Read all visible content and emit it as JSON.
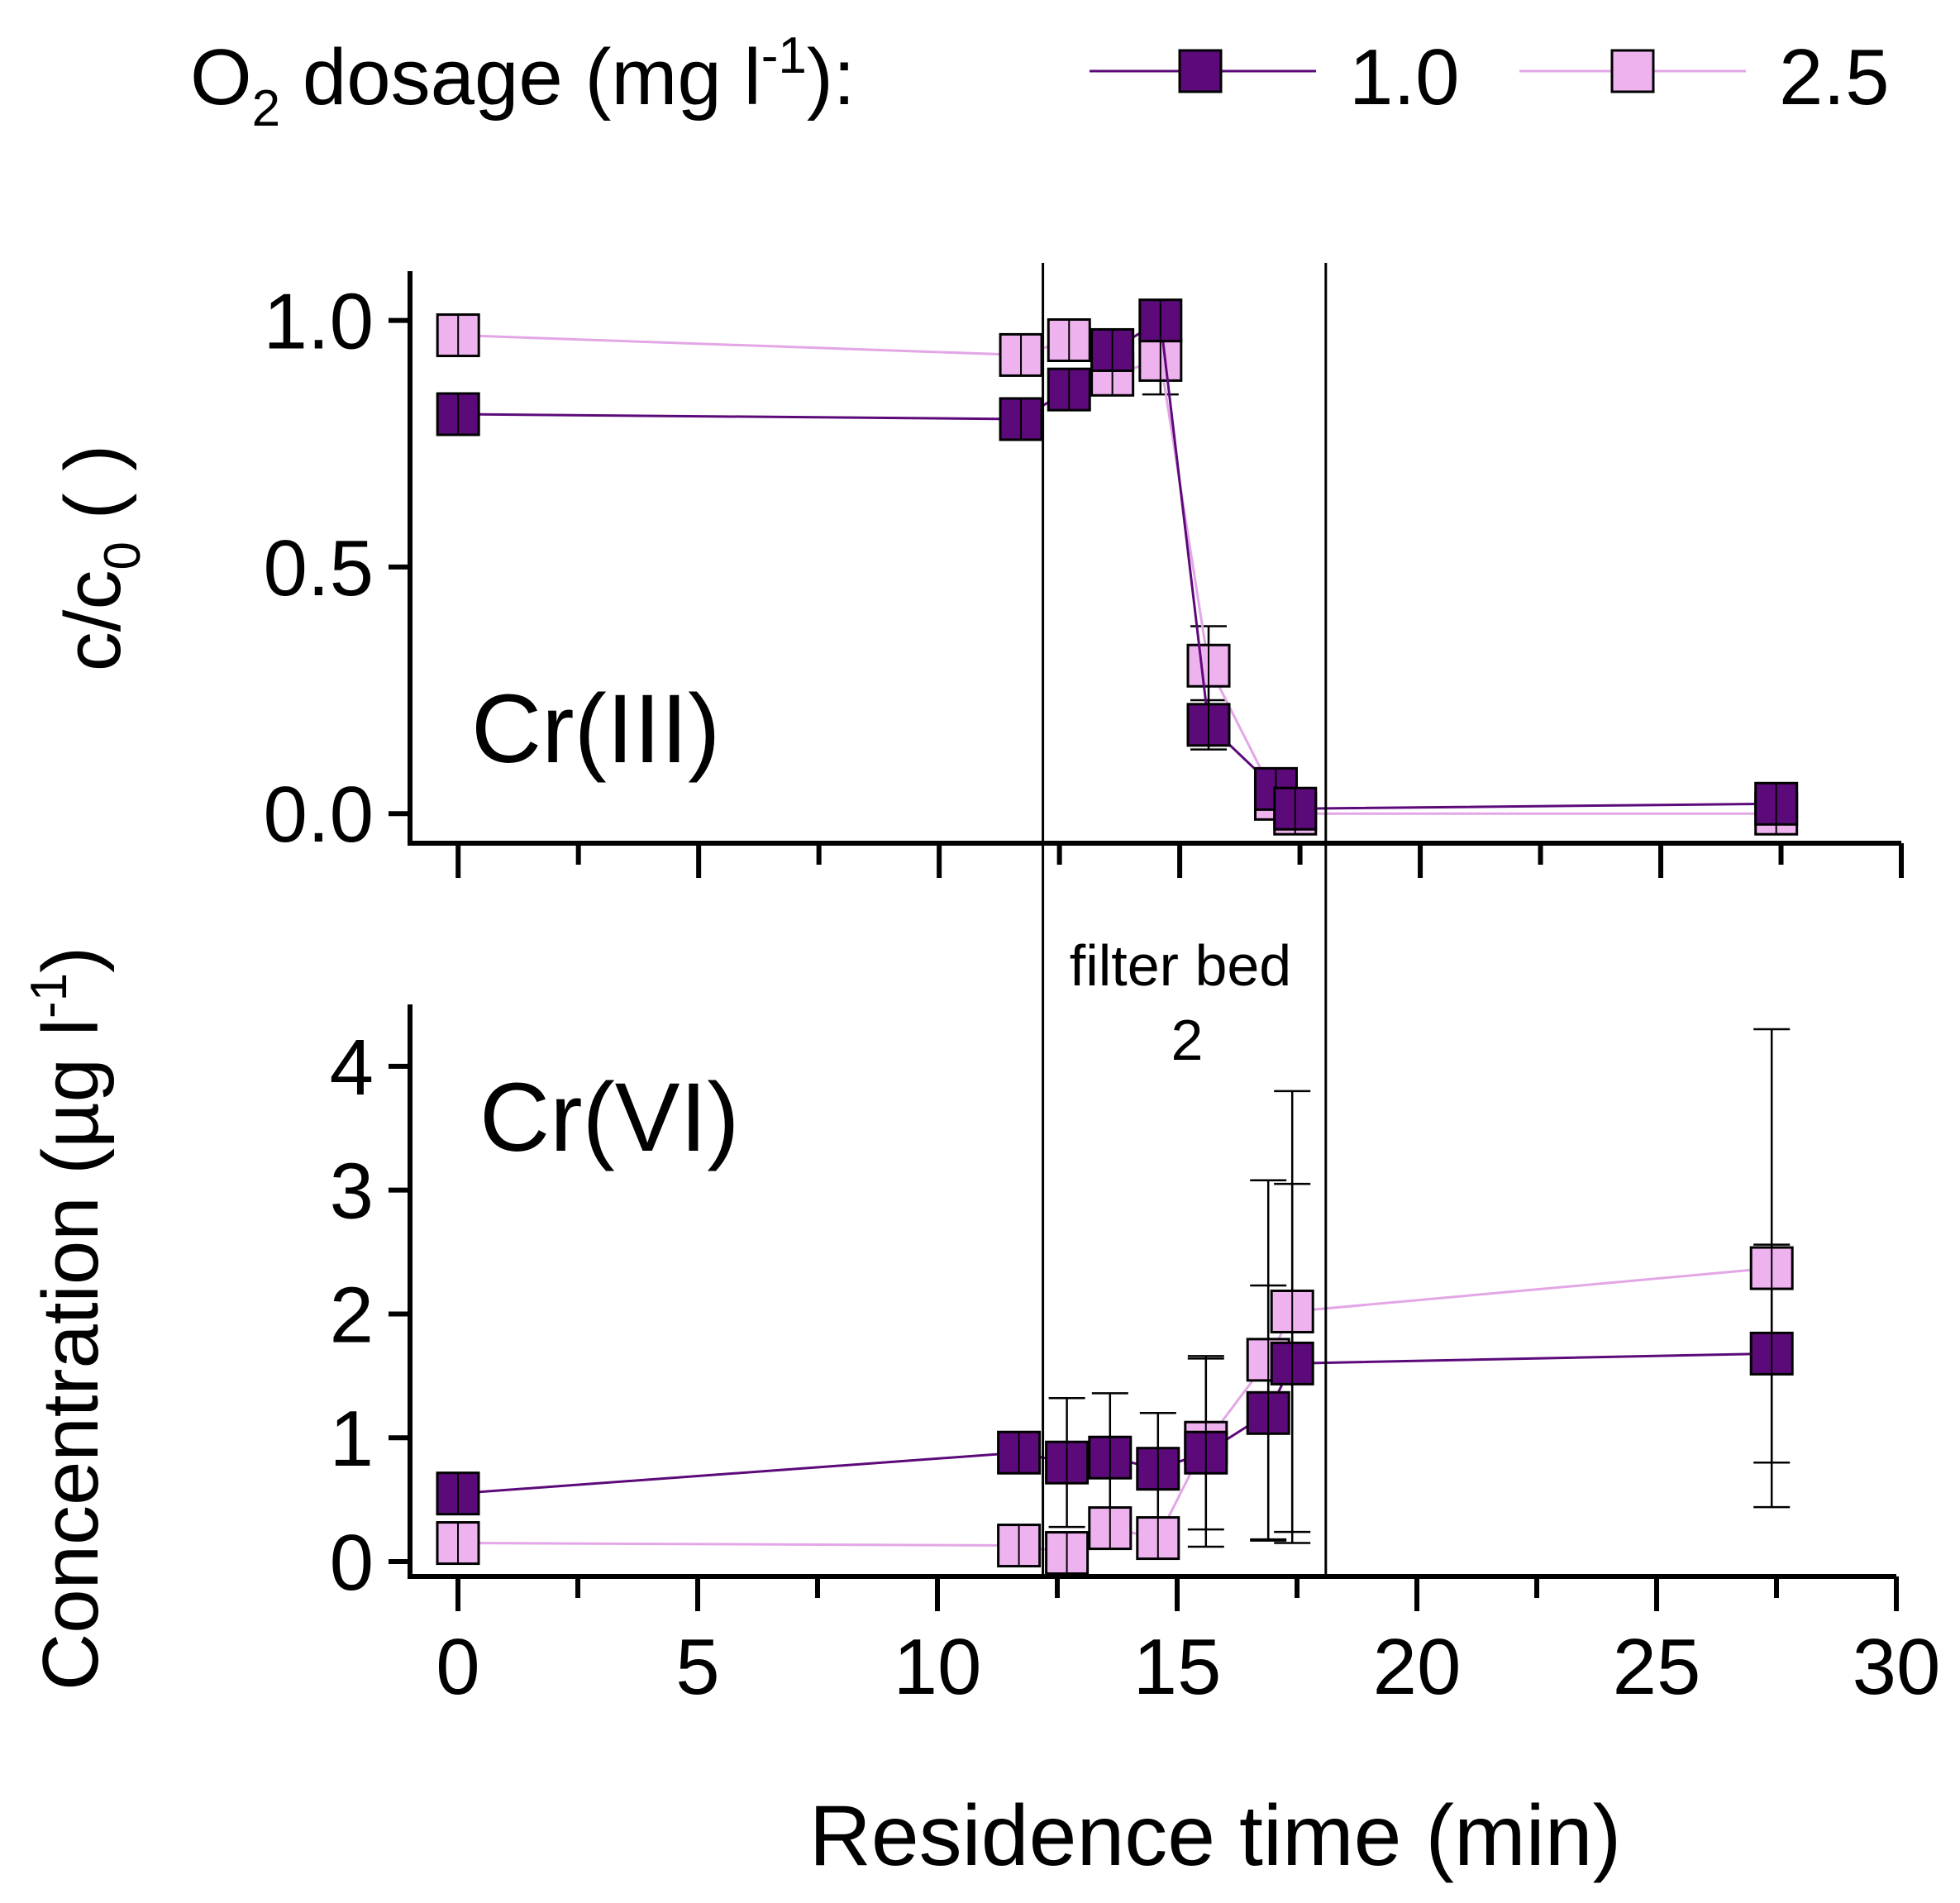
{
  "legend": {
    "title_main": "O",
    "title_sub": "2",
    "title_rest": " dosage (mg l",
    "title_sup": "-1",
    "title_end": "):",
    "entries": [
      "1.0",
      "2.5"
    ]
  },
  "colors": {
    "series_1_0": "#5c0a7a",
    "series_2_5": "#eeb2ee",
    "line_2_5": "#e3a6e6",
    "axis": "#000000"
  },
  "chart_data": [
    {
      "type": "line",
      "title": "Cr(III)",
      "xlabel": "Residence time (min)",
      "ylabel_main": "c/c",
      "ylabel_sub": "0",
      "ylabel_rest": " ( )",
      "xlim": [
        -1,
        30
      ],
      "ylim": [
        -0.06,
        1.1
      ],
      "yticks": [
        0.0,
        0.5,
        1.0
      ],
      "ytick_labels": [
        "0.0",
        "0.5",
        "1.0"
      ],
      "xticks": [
        0,
        5,
        10,
        15,
        20,
        25,
        30
      ],
      "series": [
        {
          "name": "1.0",
          "x": [
            0,
            11.7,
            12.7,
            13.6,
            14.6,
            15.6,
            17.0,
            17.4,
            27.4
          ],
          "y": [
            0.81,
            0.8,
            0.86,
            0.94,
            1.0,
            0.18,
            0.05,
            0.01,
            0.02
          ],
          "err": [
            0.03,
            0.03,
            0.03,
            0.04,
            0.03,
            0.05,
            0.03,
            0.02,
            0.02
          ]
        },
        {
          "name": "2.5",
          "x": [
            0,
            11.7,
            12.7,
            13.6,
            14.6,
            15.6,
            17.0,
            17.4,
            27.4
          ],
          "y": [
            0.97,
            0.93,
            0.96,
            0.89,
            0.92,
            0.3,
            0.03,
            0.0,
            0.0
          ],
          "err": [
            0.03,
            0.03,
            0.03,
            0.04,
            0.07,
            0.08,
            0.03,
            0.02,
            0.02
          ]
        }
      ]
    },
    {
      "type": "line",
      "title": "Cr(VI)",
      "xlabel": "Residence time (min)",
      "ylabel_main": "Concentration (µg l",
      "ylabel_sup": "-1",
      "ylabel_end": ")",
      "xlim": [
        -1,
        30
      ],
      "ylim": [
        -0.12,
        4.5
      ],
      "yticks": [
        0,
        1,
        2,
        3,
        4
      ],
      "ytick_labels": [
        "0",
        "1",
        "2",
        "3",
        "4"
      ],
      "xticks": [
        0,
        5,
        10,
        15,
        20,
        25,
        30
      ],
      "xtick_labels": [
        "0",
        "5",
        "10",
        "15",
        "20",
        "25",
        "30"
      ],
      "series": [
        {
          "name": "1.0",
          "x": [
            0,
            11.7,
            12.7,
            13.6,
            14.6,
            15.6,
            16.9,
            17.4,
            27.4
          ],
          "y": [
            0.55,
            0.88,
            0.8,
            0.84,
            0.75,
            0.88,
            1.2,
            1.6,
            1.68
          ],
          "err": [
            0.05,
            0.05,
            0.52,
            0.52,
            0.45,
            0.76,
            1.03,
            1.45,
            0.88
          ]
        },
        {
          "name": "2.5",
          "x": [
            0,
            11.7,
            12.7,
            13.6,
            14.6,
            15.6,
            16.9,
            17.4,
            27.4
          ],
          "y": [
            0.15,
            0.13,
            0.07,
            0.27,
            0.19,
            0.96,
            1.63,
            2.02,
            2.37
          ],
          "err": [
            0.05,
            0.05,
            0.05,
            0.08,
            0.05,
            0.7,
            1.45,
            1.78,
            1.93
          ]
        }
      ]
    }
  ],
  "annotation": {
    "line1": "filter bed",
    "line2": "2",
    "x_start": 12.2,
    "x_end": 18.1
  }
}
